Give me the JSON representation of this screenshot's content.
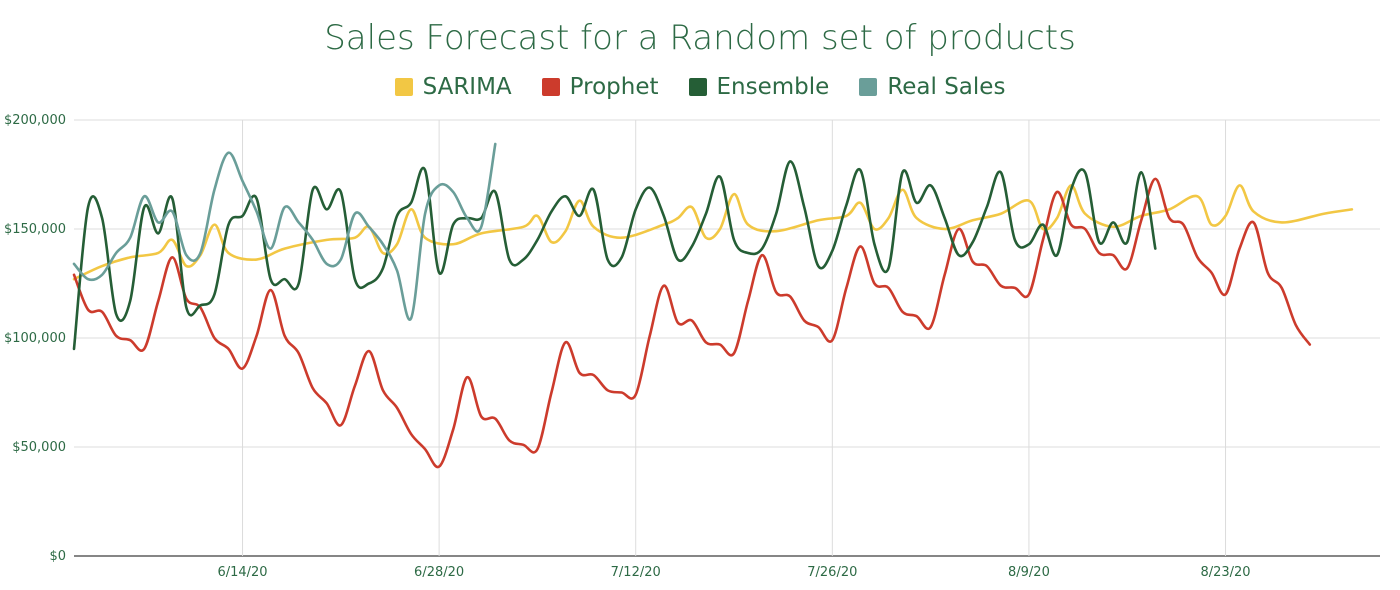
{
  "chart_data": {
    "type": "line",
    "title": "Sales Forecast for a Random set of products",
    "xlabel": "",
    "ylabel": "",
    "x_start": "6/2/20",
    "x_end": "9/3/20",
    "x_ticks": [
      "6/14/20",
      "6/28/20",
      "7/12/20",
      "7/26/20",
      "8/9/20",
      "8/23/20"
    ],
    "y_ticks": [
      "$0",
      "$50,000",
      "$100,000",
      "$150,000",
      "$200,000"
    ],
    "ylim": [
      0,
      200000
    ],
    "grid": true,
    "legend_position": "top",
    "series": [
      {
        "name": "SARIMA",
        "color": "#f2c744",
        "points": [
          [
            "6/2/20",
            127000
          ],
          [
            "6/4/20",
            133000
          ],
          [
            "6/6/20",
            137000
          ],
          [
            "6/8/20",
            139000
          ],
          [
            "6/9/20",
            145000
          ],
          [
            "6/10/20",
            133000
          ],
          [
            "6/11/20",
            138000
          ],
          [
            "6/12/20",
            152000
          ],
          [
            "6/13/20",
            139000
          ],
          [
            "6/15/20",
            136000
          ],
          [
            "6/17/20",
            141000
          ],
          [
            "6/20/20",
            145000
          ],
          [
            "6/22/20",
            146000
          ],
          [
            "6/23/20",
            151000
          ],
          [
            "6/24/20",
            139000
          ],
          [
            "6/25/20",
            143000
          ],
          [
            "6/26/20",
            159000
          ],
          [
            "6/27/20",
            146000
          ],
          [
            "6/29/20",
            143000
          ],
          [
            "7/1/20",
            148000
          ],
          [
            "7/4/20",
            151000
          ],
          [
            "7/5/20",
            156000
          ],
          [
            "7/6/20",
            144000
          ],
          [
            "7/7/20",
            149000
          ],
          [
            "7/8/20",
            163000
          ],
          [
            "7/9/20",
            151000
          ],
          [
            "7/11/20",
            146000
          ],
          [
            "7/14/20",
            152000
          ],
          [
            "7/15/20",
            155000
          ],
          [
            "7/16/20",
            160000
          ],
          [
            "7/17/20",
            146000
          ],
          [
            "7/18/20",
            150000
          ],
          [
            "7/19/20",
            166000
          ],
          [
            "7/20/20",
            152000
          ],
          [
            "7/22/20",
            149000
          ],
          [
            "7/25/20",
            154000
          ],
          [
            "7/27/20",
            156000
          ],
          [
            "7/28/20",
            162000
          ],
          [
            "7/29/20",
            150000
          ],
          [
            "7/30/20",
            155000
          ],
          [
            "7/31/20",
            168000
          ],
          [
            "8/1/20",
            155000
          ],
          [
            "8/3/20",
            150000
          ],
          [
            "8/5/20",
            154000
          ],
          [
            "8/7/20",
            157000
          ],
          [
            "8/9/20",
            163000
          ],
          [
            "8/10/20",
            150000
          ],
          [
            "8/11/20",
            155000
          ],
          [
            "8/12/20",
            170000
          ],
          [
            "8/13/20",
            157000
          ],
          [
            "8/15/20",
            151000
          ],
          [
            "8/17/20",
            156000
          ],
          [
            "8/19/20",
            159000
          ],
          [
            "8/21/20",
            165000
          ],
          [
            "8/22/20",
            152000
          ],
          [
            "8/23/20",
            156000
          ],
          [
            "8/24/20",
            170000
          ],
          [
            "8/25/20",
            158000
          ],
          [
            "8/27/20",
            153000
          ],
          [
            "8/30/20",
            157000
          ],
          [
            "9/1/20",
            159000
          ]
        ]
      },
      {
        "name": "Prophet",
        "color": "#cc3b2c",
        "points": [
          [
            "6/2/20",
            129000
          ],
          [
            "6/3/20",
            113000
          ],
          [
            "6/4/20",
            112000
          ],
          [
            "6/5/20",
            101000
          ],
          [
            "6/6/20",
            99000
          ],
          [
            "6/7/20",
            95000
          ],
          [
            "6/8/20",
            117000
          ],
          [
            "6/9/20",
            137000
          ],
          [
            "6/10/20",
            118000
          ],
          [
            "6/11/20",
            114000
          ],
          [
            "6/12/20",
            100000
          ],
          [
            "6/13/20",
            95000
          ],
          [
            "6/14/20",
            86000
          ],
          [
            "6/15/20",
            101000
          ],
          [
            "6/16/20",
            122000
          ],
          [
            "6/17/20",
            101000
          ],
          [
            "6/18/20",
            93000
          ],
          [
            "6/19/20",
            77000
          ],
          [
            "6/20/20",
            70000
          ],
          [
            "6/21/20",
            60000
          ],
          [
            "6/22/20",
            78000
          ],
          [
            "6/23/20",
            94000
          ],
          [
            "6/24/20",
            76000
          ],
          [
            "6/25/20",
            68000
          ],
          [
            "6/26/20",
            56000
          ],
          [
            "6/27/20",
            49000
          ],
          [
            "6/28/20",
            41000
          ],
          [
            "6/29/20",
            58000
          ],
          [
            "6/30/20",
            82000
          ],
          [
            "7/1/20",
            64000
          ],
          [
            "7/2/20",
            63000
          ],
          [
            "7/3/20",
            53000
          ],
          [
            "7/4/20",
            51000
          ],
          [
            "7/5/20",
            49000
          ],
          [
            "7/6/20",
            75000
          ],
          [
            "7/7/20",
            98000
          ],
          [
            "7/8/20",
            84000
          ],
          [
            "7/9/20",
            83000
          ],
          [
            "7/10/20",
            76000
          ],
          [
            "7/11/20",
            75000
          ],
          [
            "7/12/20",
            74000
          ],
          [
            "7/13/20",
            101000
          ],
          [
            "7/14/20",
            124000
          ],
          [
            "7/15/20",
            107000
          ],
          [
            "7/16/20",
            108000
          ],
          [
            "7/17/20",
            98000
          ],
          [
            "7/18/20",
            97000
          ],
          [
            "7/19/20",
            93000
          ],
          [
            "7/20/20",
            117000
          ],
          [
            "7/21/20",
            138000
          ],
          [
            "7/22/20",
            121000
          ],
          [
            "7/23/20",
            119000
          ],
          [
            "7/24/20",
            108000
          ],
          [
            "7/25/20",
            105000
          ],
          [
            "7/26/20",
            99000
          ],
          [
            "7/27/20",
            123000
          ],
          [
            "7/28/20",
            142000
          ],
          [
            "7/29/20",
            125000
          ],
          [
            "7/30/20",
            123000
          ],
          [
            "7/31/20",
            112000
          ],
          [
            "8/1/20",
            110000
          ],
          [
            "8/2/20",
            105000
          ],
          [
            "8/3/20",
            129000
          ],
          [
            "8/4/20",
            150000
          ],
          [
            "8/5/20",
            135000
          ],
          [
            "8/6/20",
            133000
          ],
          [
            "8/7/20",
            124000
          ],
          [
            "8/8/20",
            123000
          ],
          [
            "8/9/20",
            120000
          ],
          [
            "8/10/20",
            145000
          ],
          [
            "8/11/20",
            167000
          ],
          [
            "8/12/20",
            152000
          ],
          [
            "8/13/20",
            150000
          ],
          [
            "8/14/20",
            139000
          ],
          [
            "8/15/20",
            138000
          ],
          [
            "8/16/20",
            132000
          ],
          [
            "8/17/20",
            154000
          ],
          [
            "8/18/20",
            173000
          ],
          [
            "8/19/20",
            155000
          ],
          [
            "8/20/20",
            152000
          ],
          [
            "8/21/20",
            137000
          ],
          [
            "8/22/20",
            130000
          ],
          [
            "8/23/20",
            120000
          ],
          [
            "8/24/20",
            141000
          ],
          [
            "8/25/20",
            153000
          ],
          [
            "8/26/20",
            130000
          ],
          [
            "8/27/20",
            123000
          ],
          [
            "8/28/20",
            106000
          ],
          [
            "8/29/20",
            97000
          ]
        ]
      },
      {
        "name": "Ensemble",
        "color": "#255e36",
        "points": [
          [
            "6/2/20",
            95000
          ],
          [
            "6/3/20",
            160000
          ],
          [
            "6/4/20",
            155000
          ],
          [
            "6/5/20",
            111000
          ],
          [
            "6/6/20",
            117000
          ],
          [
            "6/7/20",
            160000
          ],
          [
            "6/8/20",
            148000
          ],
          [
            "6/9/20",
            164000
          ],
          [
            "6/10/20",
            114000
          ],
          [
            "6/11/20",
            115000
          ],
          [
            "6/12/20",
            120000
          ],
          [
            "6/13/20",
            152000
          ],
          [
            "6/14/20",
            156000
          ],
          [
            "6/15/20",
            164000
          ],
          [
            "6/16/20",
            127000
          ],
          [
            "6/17/20",
            127000
          ],
          [
            "6/18/20",
            125000
          ],
          [
            "6/19/20",
            168000
          ],
          [
            "6/20/20",
            159000
          ],
          [
            "6/21/20",
            167000
          ],
          [
            "6/22/20",
            127000
          ],
          [
            "6/23/20",
            125000
          ],
          [
            "6/24/20",
            132000
          ],
          [
            "6/25/20",
            156000
          ],
          [
            "6/26/20",
            162000
          ],
          [
            "6/27/20",
            177000
          ],
          [
            "6/28/20",
            130000
          ],
          [
            "6/29/20",
            152000
          ],
          [
            "6/30/20",
            155000
          ],
          [
            "7/1/20",
            155000
          ],
          [
            "7/2/20",
            167000
          ],
          [
            "7/3/20",
            136000
          ],
          [
            "7/4/20",
            136000
          ],
          [
            "7/5/20",
            145000
          ],
          [
            "7/6/20",
            158000
          ],
          [
            "7/7/20",
            165000
          ],
          [
            "7/8/20",
            156000
          ],
          [
            "7/9/20",
            168000
          ],
          [
            "7/10/20",
            136000
          ],
          [
            "7/11/20",
            137000
          ],
          [
            "7/12/20",
            159000
          ],
          [
            "7/13/20",
            169000
          ],
          [
            "7/14/20",
            156000
          ],
          [
            "7/15/20",
            136000
          ],
          [
            "7/16/20",
            142000
          ],
          [
            "7/17/20",
            157000
          ],
          [
            "7/18/20",
            174000
          ],
          [
            "7/19/20",
            145000
          ],
          [
            "7/20/20",
            139000
          ],
          [
            "7/21/20",
            141000
          ],
          [
            "7/22/20",
            157000
          ],
          [
            "7/23/20",
            181000
          ],
          [
            "7/24/20",
            160000
          ],
          [
            "7/25/20",
            133000
          ],
          [
            "7/26/20",
            140000
          ],
          [
            "7/27/20",
            161000
          ],
          [
            "7/28/20",
            177000
          ],
          [
            "7/29/20",
            143000
          ],
          [
            "7/30/20",
            132000
          ],
          [
            "7/31/20",
            176000
          ],
          [
            "8/1/20",
            162000
          ],
          [
            "8/2/20",
            170000
          ],
          [
            "8/3/20",
            155000
          ],
          [
            "8/4/20",
            138000
          ],
          [
            "8/5/20",
            144000
          ],
          [
            "8/6/20",
            160000
          ],
          [
            "8/7/20",
            176000
          ],
          [
            "8/8/20",
            145000
          ],
          [
            "8/9/20",
            143000
          ],
          [
            "8/10/20",
            152000
          ],
          [
            "8/11/20",
            138000
          ],
          [
            "8/12/20",
            168000
          ],
          [
            "8/13/20",
            176000
          ],
          [
            "8/14/20",
            144000
          ],
          [
            "8/15/20",
            153000
          ],
          [
            "8/16/20",
            144000
          ],
          [
            "8/17/20",
            176000
          ],
          [
            "8/18/20",
            141000
          ]
        ]
      },
      {
        "name": "Real Sales",
        "color": "#6a9e99",
        "points": [
          [
            "6/2/20",
            134000
          ],
          [
            "6/3/20",
            127000
          ],
          [
            "6/4/20",
            129000
          ],
          [
            "6/5/20",
            139000
          ],
          [
            "6/6/20",
            146000
          ],
          [
            "6/7/20",
            165000
          ],
          [
            "6/8/20",
            153000
          ],
          [
            "6/9/20",
            158000
          ],
          [
            "6/10/20",
            138000
          ],
          [
            "6/11/20",
            139000
          ],
          [
            "6/12/20",
            168000
          ],
          [
            "6/13/20",
            185000
          ],
          [
            "6/14/20",
            172000
          ],
          [
            "6/15/20",
            158000
          ],
          [
            "6/16/20",
            141000
          ],
          [
            "6/17/20",
            160000
          ],
          [
            "6/18/20",
            153000
          ],
          [
            "6/19/20",
            145000
          ],
          [
            "6/20/20",
            134000
          ],
          [
            "6/21/20",
            136000
          ],
          [
            "6/22/20",
            157000
          ],
          [
            "6/23/20",
            151000
          ],
          [
            "6/24/20",
            143000
          ],
          [
            "6/25/20",
            131000
          ],
          [
            "6/26/20",
            109000
          ],
          [
            "6/27/20",
            157000
          ],
          [
            "6/28/20",
            170000
          ],
          [
            "6/29/20",
            167000
          ],
          [
            "6/30/20",
            155000
          ],
          [
            "7/1/20",
            151000
          ],
          [
            "7/2/20",
            189000
          ]
        ]
      }
    ]
  }
}
